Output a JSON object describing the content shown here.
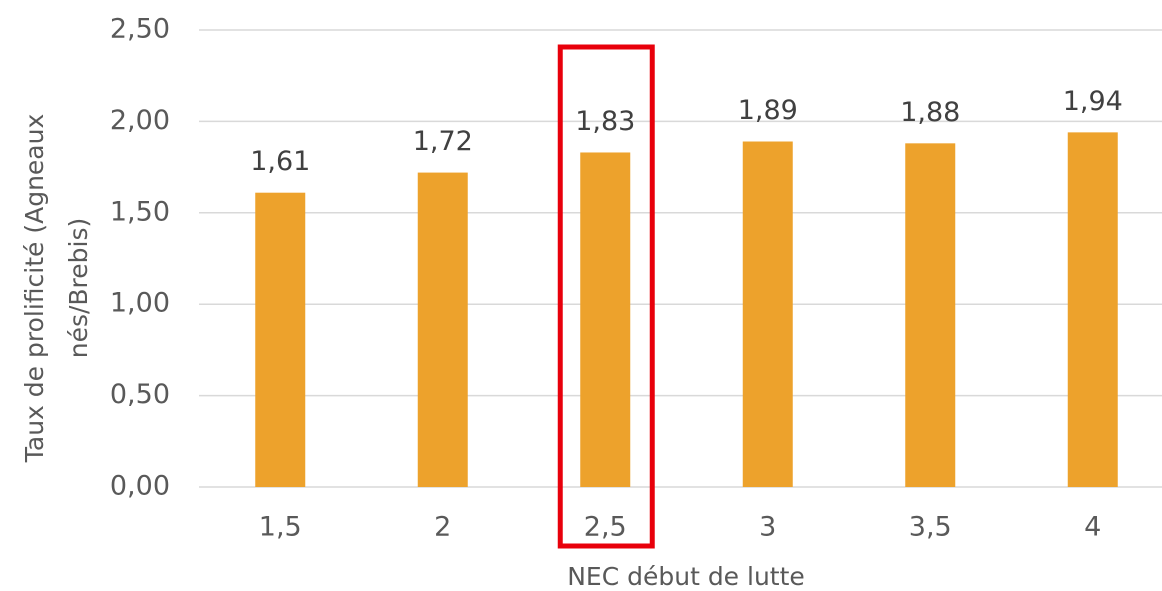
{
  "chart_data": {
    "type": "bar",
    "categories": [
      "1,5",
      "2",
      "2,5",
      "3",
      "3,5",
      "4"
    ],
    "values": [
      1.61,
      1.72,
      1.83,
      1.89,
      1.88,
      1.94
    ],
    "value_labels": [
      "1,61",
      "1,72",
      "1,83",
      "1,89",
      "1,88",
      "1,94"
    ],
    "color": "#eda22c",
    "ylim": [
      0,
      2.5
    ],
    "yticks": [
      {
        "value": 0,
        "label": "0,00"
      },
      {
        "value": 0.5,
        "label": "0,50"
      },
      {
        "value": 1,
        "label": "1,00"
      },
      {
        "value": 1.5,
        "label": "1,50"
      },
      {
        "value": 2,
        "label": "2,00"
      },
      {
        "value": 2.5,
        "label": "2,50"
      }
    ],
    "grid": true,
    "xlabel": "NEC début de lutte",
    "ylabel": [
      "Taux de prolificité (Agneaux",
      "nés/Brebis)"
    ],
    "highlight": {
      "index": 2,
      "color": "#e8000b"
    }
  }
}
